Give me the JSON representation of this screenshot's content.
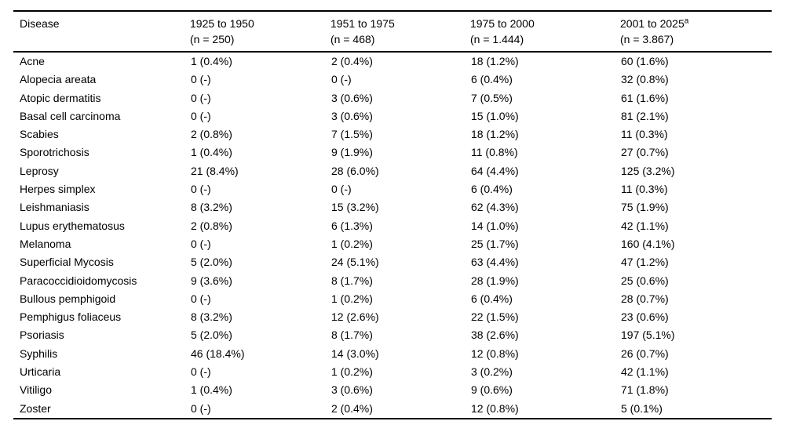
{
  "table": {
    "columns": [
      {
        "label": "Disease",
        "superscript": "",
        "sublabel": ""
      },
      {
        "label": "1925 to 1950",
        "superscript": "",
        "sublabel": "(n = 250)"
      },
      {
        "label": "1951 to 1975",
        "superscript": "",
        "sublabel": "(n = 468)"
      },
      {
        "label": "1975 to 2000",
        "superscript": "",
        "sublabel": "(n = 1.444)"
      },
      {
        "label": "2001 to 2025",
        "superscript": "a",
        "sublabel": "(n = 3.867)"
      }
    ],
    "rows": [
      {
        "disease": "Acne",
        "values": [
          "1 (0.4%)",
          "2 (0.4%)",
          "18 (1.2%)",
          "60 (1.6%)"
        ]
      },
      {
        "disease": "Alopecia areata",
        "values": [
          "0 (-)",
          "0 (-)",
          "6 (0.4%)",
          "32 (0.8%)"
        ]
      },
      {
        "disease": "Atopic dermatitis",
        "values": [
          "0 (-)",
          "3 (0.6%)",
          "7 (0.5%)",
          "61 (1.6%)"
        ]
      },
      {
        "disease": "Basal cell carcinoma",
        "values": [
          "0 (-)",
          "3 (0.6%)",
          "15 (1.0%)",
          "81 (2.1%)"
        ]
      },
      {
        "disease": "Scabies",
        "values": [
          "2 (0.8%)",
          "7 (1.5%)",
          "18 (1.2%)",
          "11 (0.3%)"
        ]
      },
      {
        "disease": "Sporotrichosis",
        "values": [
          "1 (0.4%)",
          "9 (1.9%)",
          "11 (0.8%)",
          "27 (0.7%)"
        ]
      },
      {
        "disease": "Leprosy",
        "values": [
          "21 (8.4%)",
          "28 (6.0%)",
          "64 (4.4%)",
          "125 (3.2%)"
        ]
      },
      {
        "disease": "Herpes simplex",
        "values": [
          "0 (-)",
          "0 (-)",
          "6 (0.4%)",
          "11 (0.3%)"
        ]
      },
      {
        "disease": "Leishmaniasis",
        "values": [
          "8 (3.2%)",
          "15 (3.2%)",
          "62 (4.3%)",
          "75 (1.9%)"
        ]
      },
      {
        "disease": "Lupus erythematosus",
        "values": [
          "2 (0.8%)",
          "6 (1.3%)",
          "14 (1.0%)",
          "42 (1.1%)"
        ]
      },
      {
        "disease": "Melanoma",
        "values": [
          "0 (-)",
          "1 (0.2%)",
          "25 (1.7%)",
          "160 (4.1%)"
        ]
      },
      {
        "disease": "Superficial Mycosis",
        "values": [
          "5 (2.0%)",
          "24 (5.1%)",
          "63 (4.4%)",
          "47 (1.2%)"
        ]
      },
      {
        "disease": "Paracoccidioidomycosis",
        "values": [
          "9 (3.6%)",
          "8 (1.7%)",
          "28 (1.9%)",
          "25 (0.6%)"
        ]
      },
      {
        "disease": "Bullous pemphigoid",
        "values": [
          "0 (-)",
          "1 (0.2%)",
          "6 (0.4%)",
          "28 (0.7%)"
        ]
      },
      {
        "disease": "Pemphigus foliaceus",
        "values": [
          "8 (3.2%)",
          "12 (2.6%)",
          "22 (1.5%)",
          "23 (0.6%)"
        ]
      },
      {
        "disease": "Psoriasis",
        "values": [
          "5 (2.0%)",
          "8 (1.7%)",
          "38 (2.6%)",
          "197 (5.1%)"
        ]
      },
      {
        "disease": "Syphilis",
        "values": [
          "46 (18.4%)",
          "14 (3.0%)",
          "12 (0.8%)",
          "26 (0.7%)"
        ]
      },
      {
        "disease": "Urticaria",
        "values": [
          "0 (-)",
          "1 (0.2%)",
          "3 (0.2%)",
          "42 (1.1%)"
        ]
      },
      {
        "disease": "Vitiligo",
        "values": [
          "1 (0.4%)",
          "3 (0.6%)",
          "9 (0.6%)",
          "71 (1.8%)"
        ]
      },
      {
        "disease": "Zoster",
        "values": [
          "0 (-)",
          "2 (0.4%)",
          "12 (0.8%)",
          "5 (0.1%)"
        ]
      }
    ]
  }
}
